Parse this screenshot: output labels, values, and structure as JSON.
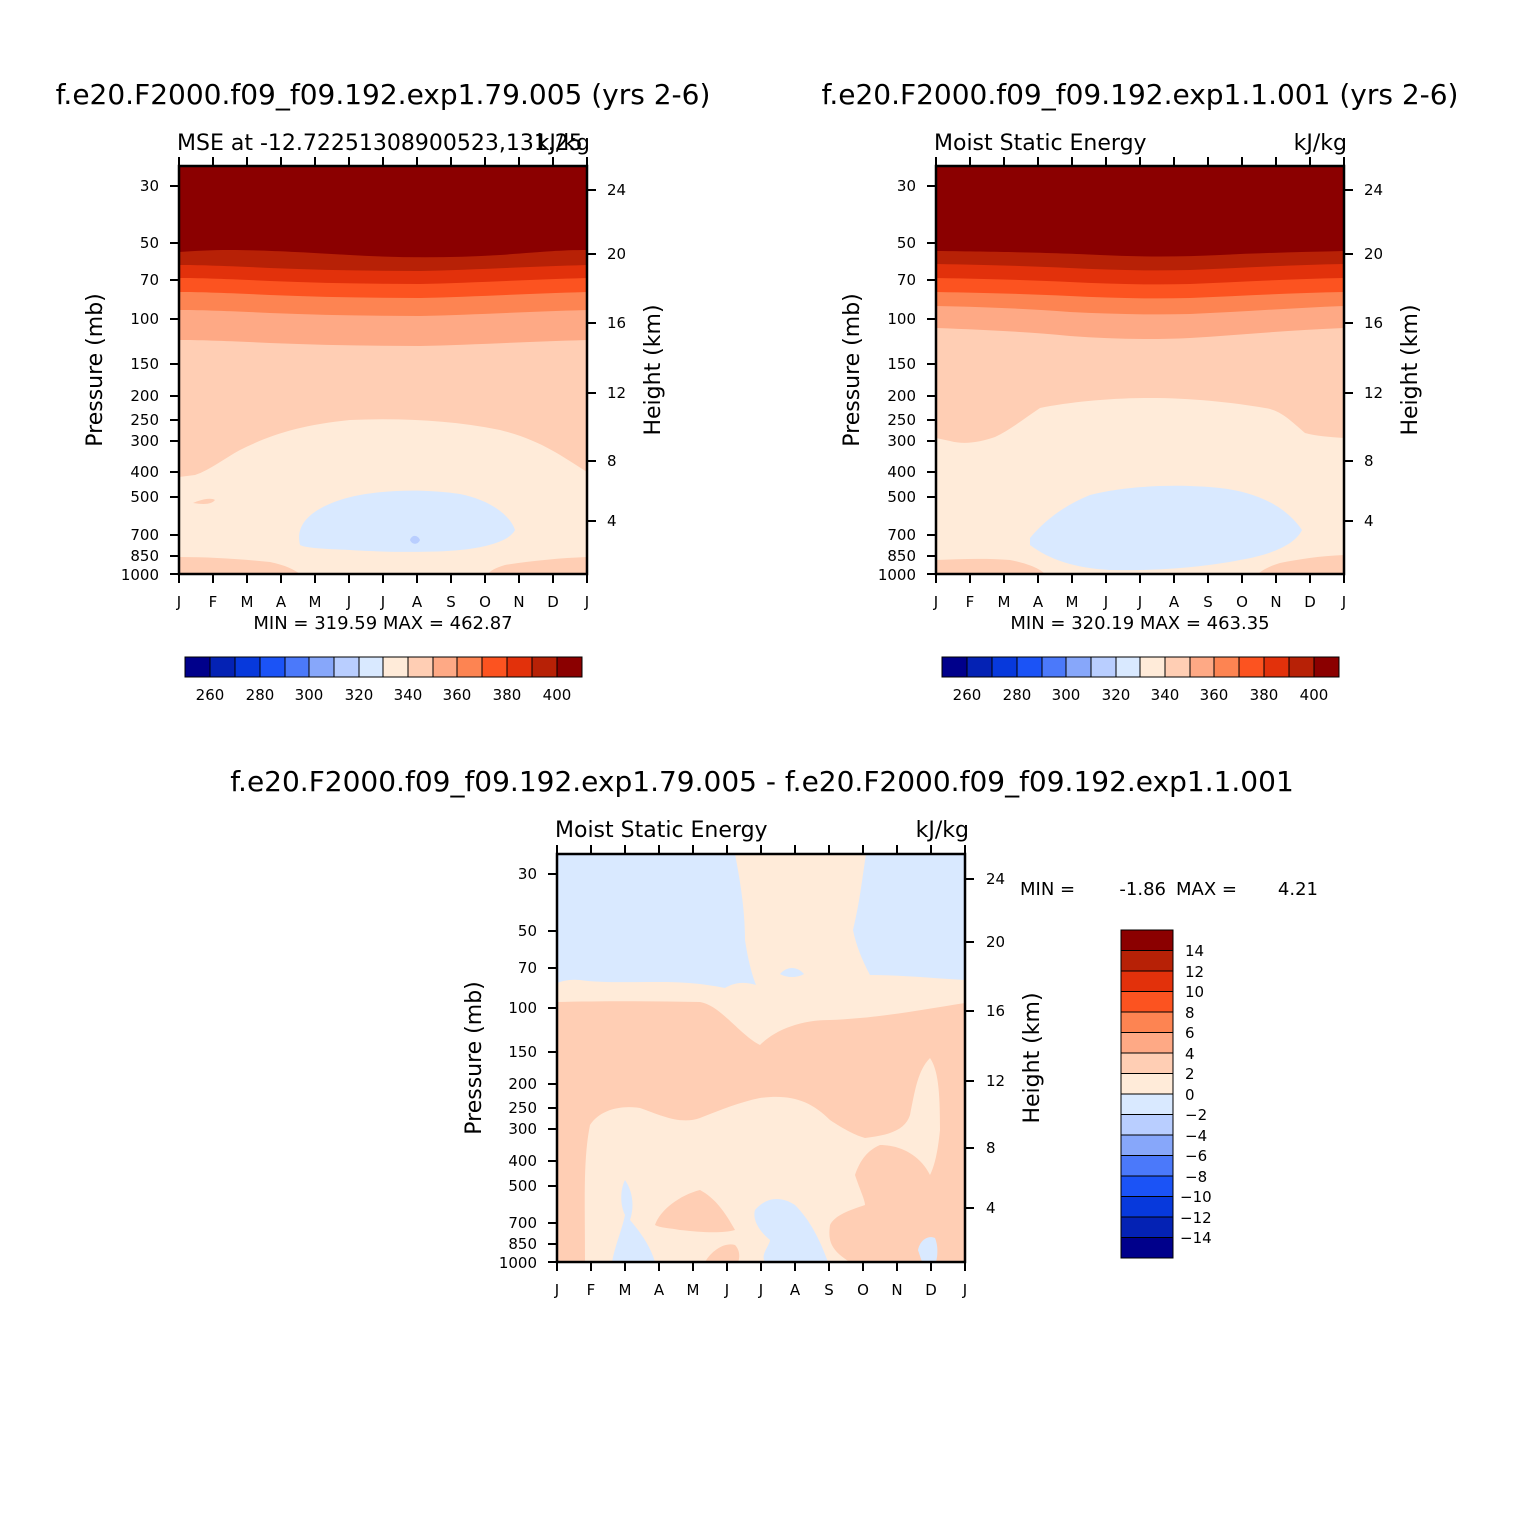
{
  "chart_data": [
    {
      "type": "contour",
      "title": "f.e20.F2000.f09_f09.192.exp1.79.005 (yrs 2-6)",
      "subtitle_left": "MSE at -12.72251308900523,131.25",
      "subtitle_right": "kJ/kg",
      "ylabel": "Pressure (mb)",
      "ylabel_right": "Height (km)",
      "x_ticks": [
        "J",
        "F",
        "M",
        "A",
        "M",
        "J",
        "J",
        "A",
        "S",
        "O",
        "N",
        "D",
        "J"
      ],
      "y_ticks": [
        "30",
        "50",
        "70",
        "100",
        "150",
        "200",
        "250",
        "300",
        "400",
        "500",
        "700",
        "850",
        "1000"
      ],
      "y_right_ticks": [
        "24",
        "20",
        "16",
        "12",
        "8",
        "4"
      ],
      "min_max_text": "MIN = 319.59  MAX = 462.87",
      "min": 319.59,
      "max": 462.87,
      "colorbar_labels": [
        "260",
        "280",
        "300",
        "320",
        "340",
        "360",
        "380",
        "400"
      ]
    },
    {
      "type": "contour",
      "title": "f.e20.F2000.f09_f09.192.exp1.1.001 (yrs 2-6)",
      "subtitle_left": "Moist Static Energy",
      "subtitle_right": "kJ/kg",
      "ylabel": "Pressure (mb)",
      "ylabel_right": "Height (km)",
      "x_ticks": [
        "J",
        "F",
        "M",
        "A",
        "M",
        "J",
        "J",
        "A",
        "S",
        "O",
        "N",
        "D",
        "J"
      ],
      "y_ticks": [
        "30",
        "50",
        "70",
        "100",
        "150",
        "200",
        "250",
        "300",
        "400",
        "500",
        "700",
        "850",
        "1000"
      ],
      "y_right_ticks": [
        "24",
        "20",
        "16",
        "12",
        "8",
        "4"
      ],
      "min_max_text": "MIN = 320.19  MAX = 463.35",
      "min": 320.19,
      "max": 463.35,
      "colorbar_labels": [
        "260",
        "280",
        "300",
        "320",
        "340",
        "360",
        "380",
        "400"
      ]
    },
    {
      "type": "contour",
      "title": "f.e20.F2000.f09_f09.192.exp1.79.005 - f.e20.F2000.f09_f09.192.exp1.1.001",
      "subtitle_left": "Moist Static Energy",
      "subtitle_right": "kJ/kg",
      "ylabel": "Pressure (mb)",
      "ylabel_right": "Height (km)",
      "x_ticks": [
        "J",
        "F",
        "M",
        "A",
        "M",
        "J",
        "J",
        "A",
        "S",
        "O",
        "N",
        "D",
        "J"
      ],
      "y_ticks": [
        "30",
        "50",
        "70",
        "100",
        "150",
        "200",
        "250",
        "300",
        "400",
        "500",
        "700",
        "850",
        "1000"
      ],
      "y_right_ticks": [
        "24",
        "20",
        "16",
        "12",
        "8",
        "4"
      ],
      "min_label": "MIN =",
      "min_value": "-1.86",
      "max_label": "MAX =",
      "max_value": "4.21",
      "min": -1.86,
      "max": 4.21,
      "colorbar_labels": [
        "14",
        "12",
        "10",
        "8",
        "6",
        "4",
        "2",
        "0",
        "−2",
        "−4",
        "−6",
        "−8",
        "−10",
        "−12",
        "−14"
      ]
    }
  ],
  "colors": {
    "abs_scale": [
      "#00008b",
      "#0422b4",
      "#0739dc",
      "#1b53f6",
      "#4b79fa",
      "#87a7fa",
      "#b9ceff",
      "#d9e9ff",
      "#ffebd9",
      "#ffceb4",
      "#fea985",
      "#fd8452",
      "#fc5320",
      "#e2310b",
      "#b72106",
      "#8b0000"
    ],
    "diff_scale_top_to_bottom": [
      "#8b0000",
      "#b72106",
      "#e2310b",
      "#fc5320",
      "#fd8452",
      "#fea985",
      "#ffceb4",
      "#ffebd9",
      "#d9e9ff",
      "#b9ceff",
      "#87a7fa",
      "#4b79fa",
      "#1b53f6",
      "#0739dc",
      "#0422b4",
      "#00008b"
    ]
  }
}
